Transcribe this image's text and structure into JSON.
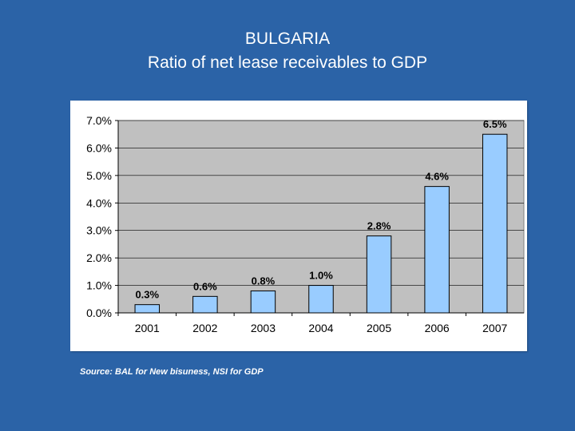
{
  "slide": {
    "country": "BULGARIA",
    "subtitle": "Ratio of net lease receivables to GDP",
    "source": "Source: BAL for New bisuness, NSI for GDP"
  },
  "colors": {
    "background": "#2b63a7",
    "plot_area": "#c0c0c0",
    "bar_fill": "#99ccff",
    "bar_stroke": "#000000"
  },
  "chart_data": {
    "type": "bar",
    "title": "Ratio of net lease receivables to GDP",
    "xlabel": "",
    "ylabel": "",
    "categories": [
      "2001",
      "2002",
      "2003",
      "2004",
      "2005",
      "2006",
      "2007"
    ],
    "values": [
      0.3,
      0.6,
      0.8,
      1.0,
      2.8,
      4.6,
      6.5
    ],
    "data_labels": [
      "0.3%",
      "0.6%",
      "0.8%",
      "1.0%",
      "2.8%",
      "4.6%",
      "6.5%"
    ],
    "y_ticks": [
      0,
      1,
      2,
      3,
      4,
      5,
      6,
      7
    ],
    "y_tick_labels": [
      "0.0%",
      "1.0%",
      "2.0%",
      "3.0%",
      "4.0%",
      "5.0%",
      "6.0%",
      "7.0%"
    ],
    "ylim": [
      0,
      7
    ],
    "grid": true,
    "legend": "none"
  }
}
